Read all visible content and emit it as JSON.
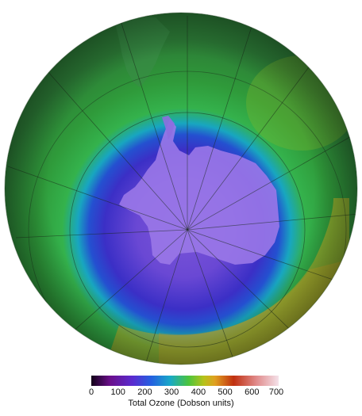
{
  "map": {
    "projection": "south-polar-orthographic",
    "colormap": [
      "#120018",
      "#6a0f8a",
      "#5a2bd0",
      "#2460e0",
      "#18a8c8",
      "#4cc43c",
      "#b6c21a",
      "#e0a020",
      "#c03010",
      "#e08a8a",
      "#f4e2ea"
    ]
  },
  "legend": {
    "ticks": [
      "0",
      "100",
      "200",
      "300",
      "400",
      "500",
      "600",
      "700"
    ],
    "title": "Total Ozone (Dobson units)"
  }
}
